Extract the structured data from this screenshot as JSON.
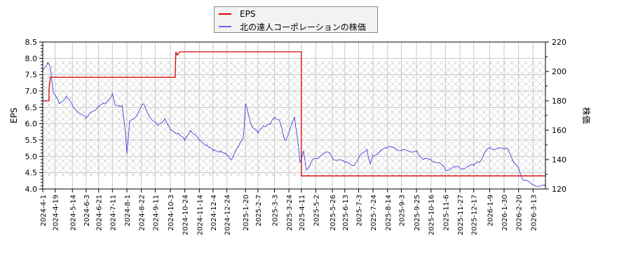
{
  "chart_data": {
    "type": "line",
    "title": "",
    "legend": {
      "position": "top-center",
      "entries": [
        {
          "label": "EPS",
          "color": "#dd0000"
        },
        {
          "label": "北の達人コーポレーションの株価",
          "color": "#4444dd"
        }
      ]
    },
    "left_axis": {
      "label": "EPS",
      "ylim": [
        4.0,
        8.5
      ],
      "ticks": [
        "4.0",
        "4.5",
        "5.0",
        "5.5",
        "6.0",
        "6.5",
        "7.0",
        "7.5",
        "8.0",
        "8.5"
      ]
    },
    "right_axis": {
      "label": "株価",
      "ylim": [
        120,
        220
      ],
      "ticks": [
        "120",
        "140",
        "160",
        "180",
        "200",
        "220"
      ]
    },
    "x_ticks": [
      "2024-4-1",
      "2024-4-19",
      "2024-5-14",
      "2024-6-3",
      "2024-6-21",
      "2024-7-11",
      "2024-8-1",
      "2024-8-22",
      "2024-9-11",
      "2024-10-3",
      "2024-10-24",
      "2024-11-14",
      "2024-12-4",
      "2024-12-24",
      "2025-1-20",
      "2025-2-7",
      "2025-3-3",
      "2025-3-24",
      "2025-4-11",
      "2025-5-2",
      "2025-5-26",
      "2025-6-13",
      "2025-7-3",
      "2025-7-24",
      "2025-8-14",
      "2025-9-3",
      "2025-9-25",
      "2025-10-16",
      "2025-11-6",
      "2025-11-27",
      "2025-12-17",
      "2026-1-9",
      "2026-1-30",
      "2026-2-20",
      "2026-3-13"
    ],
    "grid": true,
    "hatch_band": {
      "eps_from": 4.4,
      "price_to": 207
    },
    "series": [
      {
        "name": "EPS",
        "axis": "left",
        "color": "#dd0000",
        "points": [
          [
            "2024-4-1",
            6.7
          ],
          [
            "2024-4-10",
            6.7
          ],
          [
            "2024-4-10",
            7.05
          ],
          [
            "2024-4-12",
            7.42
          ],
          [
            "2024-10-10",
            7.42
          ],
          [
            "2024-10-11",
            8.2
          ],
          [
            "2024-10-13",
            8.1
          ],
          [
            "2024-10-17",
            8.2
          ],
          [
            "2025-4-11",
            8.2
          ],
          [
            "2025-4-11",
            4.4
          ],
          [
            "2026-3-31",
            4.4
          ]
        ]
      },
      {
        "name": "北の達人コーポレーションの株価",
        "axis": "right",
        "color": "#4444dd",
        "points": [
          [
            "2024-4-1",
            201
          ],
          [
            "2024-4-8",
            206
          ],
          [
            "2024-4-12",
            203
          ],
          [
            "2024-4-16",
            186
          ],
          [
            "2024-4-25",
            178
          ],
          [
            "2024-5-5",
            183
          ],
          [
            "2024-5-15",
            176
          ],
          [
            "2024-6-3",
            168
          ],
          [
            "2024-6-10",
            172
          ],
          [
            "2024-6-20",
            176
          ],
          [
            "2024-7-1",
            178
          ],
          [
            "2024-7-11",
            185
          ],
          [
            "2024-7-15",
            177
          ],
          [
            "2024-7-25",
            177
          ],
          [
            "2024-7-30",
            158
          ],
          [
            "2024-8-1",
            144
          ],
          [
            "2024-8-5",
            166
          ],
          [
            "2024-8-15",
            170
          ],
          [
            "2024-8-25",
            178
          ],
          [
            "2024-9-5",
            168
          ],
          [
            "2024-9-15",
            163
          ],
          [
            "2024-9-25",
            168
          ],
          [
            "2024-10-3",
            160
          ],
          [
            "2024-10-15",
            158
          ],
          [
            "2024-10-24",
            153
          ],
          [
            "2024-11-1",
            160
          ],
          [
            "2024-11-14",
            153
          ],
          [
            "2024-11-25",
            150
          ],
          [
            "2024-12-4",
            146
          ],
          [
            "2024-12-15",
            146
          ],
          [
            "2024-12-24",
            143
          ],
          [
            "2024-12-30",
            140
          ],
          [
            "2025-1-10",
            149
          ],
          [
            "2025-1-17",
            155
          ],
          [
            "2025-1-20",
            178
          ],
          [
            "2025-1-28",
            164
          ],
          [
            "2025-2-7",
            158
          ],
          [
            "2025-2-15",
            163
          ],
          [
            "2025-2-25",
            164
          ],
          [
            "2025-3-3",
            169
          ],
          [
            "2025-3-10",
            167
          ],
          [
            "2025-3-18",
            153
          ],
          [
            "2025-3-24",
            158
          ],
          [
            "2025-4-1",
            169
          ],
          [
            "2025-4-5",
            156
          ],
          [
            "2025-4-9",
            138
          ],
          [
            "2025-4-14",
            146
          ],
          [
            "2025-4-18",
            133
          ],
          [
            "2025-4-25",
            138
          ],
          [
            "2025-5-2",
            141
          ],
          [
            "2025-5-20",
            145
          ],
          [
            "2025-5-26",
            141
          ],
          [
            "2025-6-13",
            138
          ],
          [
            "2025-6-25",
            136
          ],
          [
            "2025-7-3",
            141
          ],
          [
            "2025-7-15",
            147
          ],
          [
            "2025-7-20",
            137
          ],
          [
            "2025-7-24",
            143
          ],
          [
            "2025-8-14",
            148
          ],
          [
            "2025-8-25",
            148
          ],
          [
            "2025-9-3",
            146
          ],
          [
            "2025-9-25",
            146
          ],
          [
            "2025-10-5",
            140
          ],
          [
            "2025-10-16",
            140
          ],
          [
            "2025-10-30",
            137
          ],
          [
            "2025-11-6",
            133
          ],
          [
            "2025-11-20",
            135
          ],
          [
            "2025-11-27",
            134
          ],
          [
            "2025-12-17",
            136
          ],
          [
            "2025-12-25",
            138
          ],
          [
            "2026-1-1",
            144
          ],
          [
            "2026-1-9",
            148
          ],
          [
            "2026-1-30",
            147
          ],
          [
            "2026-2-5",
            147
          ],
          [
            "2026-2-15",
            137
          ],
          [
            "2026-2-20",
            134
          ],
          [
            "2026-2-27",
            126
          ],
          [
            "2026-3-13",
            123
          ],
          [
            "2026-3-31",
            122
          ]
        ]
      }
    ]
  }
}
